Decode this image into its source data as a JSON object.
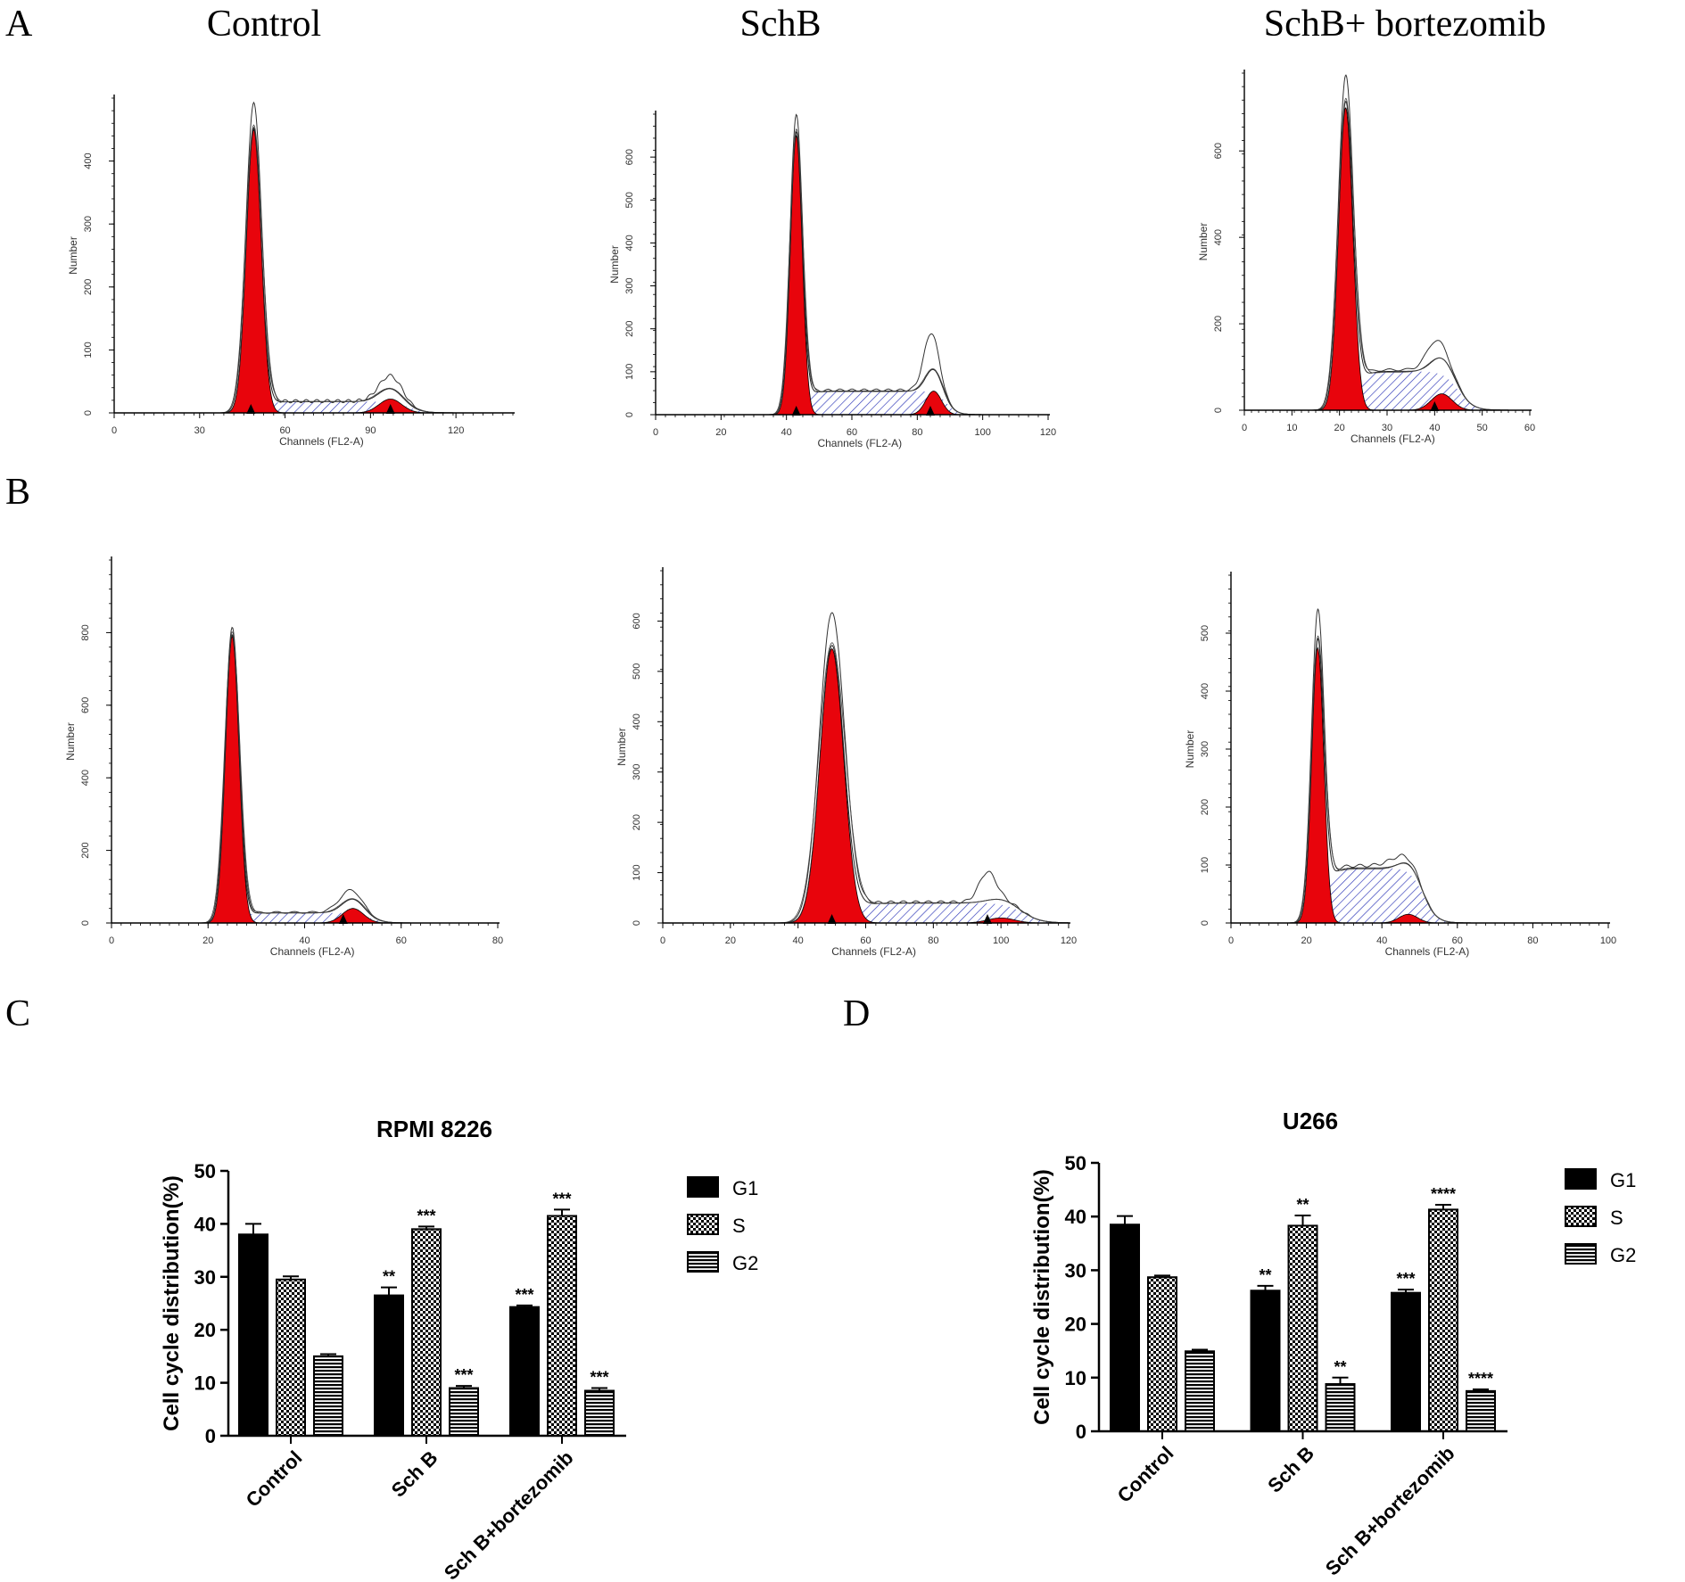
{
  "panel_letters": [
    "A",
    "B",
    "C",
    "D"
  ],
  "column_titles": [
    "Control",
    "SchB",
    "SchB+ bortezomib"
  ],
  "colors": {
    "g1_fill": "#e8040c",
    "s_hatch": "#2b35b8",
    "axis": "#000000",
    "bar_black": "#000000"
  },
  "chart_data": [
    {
      "type": "area",
      "title": "",
      "xlabel": "Channels (FL2-A)",
      "ylabel": "Number",
      "xlim": [
        0,
        140
      ],
      "ylim": [
        0,
        500
      ],
      "xticks": [
        0,
        30,
        60,
        90,
        120
      ],
      "yticks": [
        0,
        100,
        200,
        300,
        400
      ],
      "g1": {
        "center": 49,
        "height": 450,
        "sigma": 2.6
      },
      "g2": {
        "center": 97,
        "height": 22,
        "sigma": 4
      },
      "s_level": 18,
      "overlay_peak": 490,
      "bumps": [
        {
          "c": 97,
          "h": 20,
          "w": 4
        }
      ],
      "markers": [
        48,
        97
      ]
    },
    {
      "type": "area",
      "title": "",
      "xlabel": "Channels (FL2-A)",
      "ylabel": "Number",
      "xlim": [
        0,
        120
      ],
      "ylim": [
        0,
        700
      ],
      "xticks": [
        0,
        20,
        40,
        60,
        80,
        100,
        120
      ],
      "yticks": [
        0,
        100,
        200,
        300,
        400,
        500,
        600
      ],
      "g1": {
        "center": 43,
        "height": 650,
        "sigma": 1.8
      },
      "g2": {
        "center": 85,
        "height": 55,
        "sigma": 2.4
      },
      "s_level": 55,
      "overlay_peak": 690,
      "bumps": [
        {
          "c": 84,
          "h": 85,
          "w": 2.2
        }
      ],
      "markers": [
        43,
        84
      ]
    },
    {
      "type": "area",
      "title": "",
      "xlabel": "Channels (FL2-A)",
      "ylabel": "Number",
      "xlim": [
        0,
        60
      ],
      "ylim": [
        0,
        780
      ],
      "xticks": [
        0,
        10,
        20,
        30,
        40,
        50,
        60
      ],
      "yticks": [
        0,
        200,
        400,
        600
      ],
      "g1": {
        "center": 21.3,
        "height": 700,
        "sigma": 1.5
      },
      "g2": {
        "center": 41.5,
        "height": 38,
        "sigma": 2.2
      },
      "s_level": 90,
      "overlay_peak": 760,
      "bumps": [
        {
          "c": 40,
          "h": 40,
          "w": 2
        }
      ],
      "markers": [
        40
      ]
    },
    {
      "type": "area",
      "title": "",
      "xlabel": "Channels (FL2-A)",
      "ylabel": "Number",
      "xlim": [
        0,
        80
      ],
      "ylim": [
        0,
        1000
      ],
      "xticks": [
        0,
        20,
        40,
        60,
        80
      ],
      "yticks": [
        0,
        200,
        400,
        600,
        800
      ],
      "g1": {
        "center": 25,
        "height": 790,
        "sigma": 1.4
      },
      "g2": {
        "center": 50,
        "height": 40,
        "sigma": 2.2
      },
      "s_level": 28,
      "overlay_peak": 810,
      "bumps": [
        {
          "c": 49,
          "h": 25,
          "w": 2.4
        }
      ],
      "markers": [
        48
      ]
    },
    {
      "type": "area",
      "title": "",
      "xlabel": "Channels (FL2-A)",
      "ylabel": "Number",
      "xlim": [
        0,
        120
      ],
      "ylim": [
        0,
        700
      ],
      "xticks": [
        0,
        20,
        40,
        60,
        80,
        100,
        120
      ],
      "yticks": [
        0,
        100,
        200,
        300,
        400,
        500,
        600
      ],
      "g1": {
        "center": 50,
        "height": 545,
        "sigma": 3.5
      },
      "g2": {
        "center": 100,
        "height": 10,
        "sigma": 4
      },
      "s_level": 40,
      "overlay_peak": 610,
      "bumps": [
        {
          "c": 96,
          "h": 55,
          "w": 2.5
        }
      ],
      "markers": [
        50,
        96
      ]
    },
    {
      "type": "area",
      "title": "",
      "xlabel": "Channels (FL2-A)",
      "ylabel": "Number",
      "xlim": [
        0,
        100
      ],
      "ylim": [
        0,
        600
      ],
      "xticks": [
        0,
        20,
        40,
        60,
        80,
        100
      ],
      "yticks": [
        0,
        100,
        200,
        300,
        400,
        500
      ],
      "g1": {
        "center": 23,
        "height": 475,
        "sigma": 1.6
      },
      "g2": {
        "center": 47,
        "height": 15,
        "sigma": 2.5
      },
      "s_level": 95,
      "overlay_peak": 525,
      "bumps": [
        {
          "c": 44,
          "h": 10,
          "w": 3
        }
      ],
      "markers": []
    },
    {
      "type": "bar",
      "title": "RPMI 8226",
      "xlabel": "",
      "ylabel": "Cell cycle distribution(%)",
      "ylim": [
        0,
        50
      ],
      "yticks": [
        0,
        10,
        20,
        30,
        40,
        50
      ],
      "categories": [
        "Control",
        "Sch B",
        "Sch B+bortezomib"
      ],
      "series": [
        {
          "name": "G1",
          "values": [
            38,
            26.5,
            24.3
          ],
          "errors": [
            2,
            1.5,
            0.3
          ],
          "stars": [
            "",
            "**",
            "***"
          ]
        },
        {
          "name": "S",
          "values": [
            29.5,
            39,
            41.5
          ],
          "errors": [
            0.6,
            0.5,
            1.2
          ],
          "stars": [
            "",
            "***",
            "***"
          ]
        },
        {
          "name": "G2",
          "values": [
            15,
            9,
            8.5
          ],
          "errors": [
            0.4,
            0.4,
            0.5
          ],
          "stars": [
            "",
            "***",
            "***"
          ]
        }
      ],
      "legend": [
        "G1",
        "S",
        "G2"
      ]
    },
    {
      "type": "bar",
      "title": "U266",
      "xlabel": "",
      "ylabel": "Cell cycle distribution(%)",
      "ylim": [
        0,
        50
      ],
      "yticks": [
        0,
        10,
        20,
        30,
        40,
        50
      ],
      "categories": [
        "Control",
        "Sch B",
        "Sch B+bortezomib"
      ],
      "series": [
        {
          "name": "G1",
          "values": [
            38.5,
            26.2,
            25.8
          ],
          "errors": [
            1.6,
            0.9,
            0.6
          ],
          "stars": [
            "",
            "**",
            "***"
          ]
        },
        {
          "name": "S",
          "values": [
            28.7,
            38.3,
            41.3
          ],
          "errors": [
            0.3,
            1.9,
            0.9
          ],
          "stars": [
            "",
            "**",
            "****"
          ]
        },
        {
          "name": "G2",
          "values": [
            14.9,
            8.8,
            7.5
          ],
          "errors": [
            0.3,
            1.2,
            0.3
          ],
          "stars": [
            "",
            "**",
            "****"
          ]
        }
      ],
      "legend": [
        "G1",
        "S",
        "G2"
      ]
    }
  ]
}
